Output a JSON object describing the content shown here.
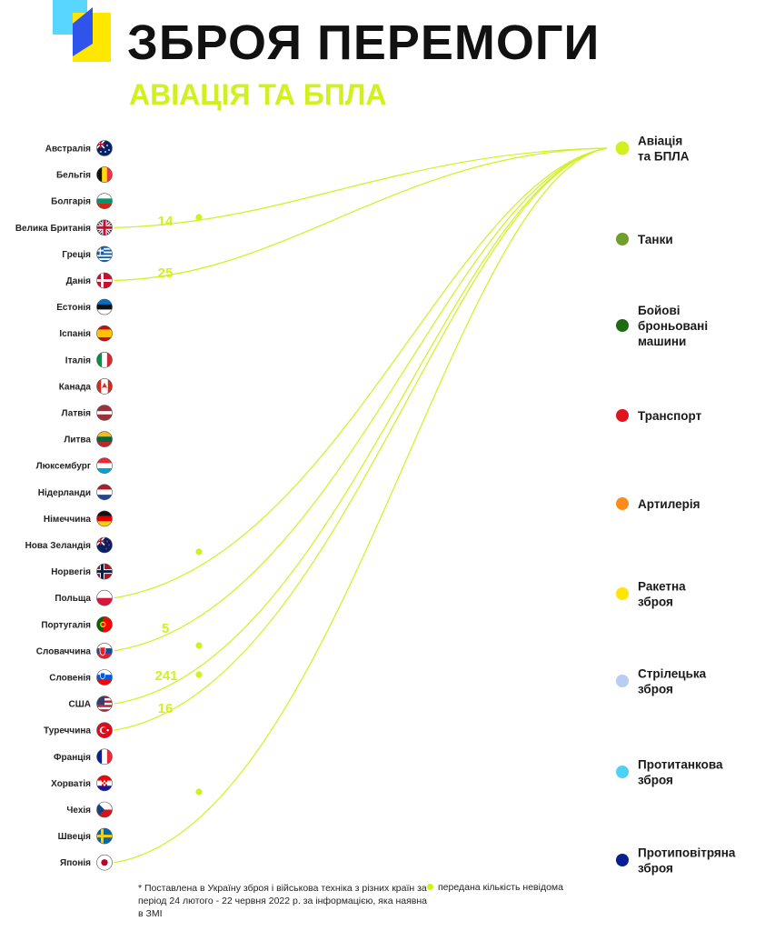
{
  "header": {
    "title": "ЗБРОЯ ПЕРЕМОГИ",
    "subtitle": "АВІАЦІЯ ТА БПЛА",
    "logo_icon": "ukraine-logo-icon",
    "colors": {
      "blue": "#2f54eb",
      "yellow": "#ffe700",
      "cyan": "#59d6ff",
      "accent": "#d2f020"
    }
  },
  "chart_data": {
    "type": "flow",
    "title": "ЗБРОЯ ПЕРЕМОГИ",
    "subtitle": "АВІАЦІЯ ТА БПЛА",
    "highlighted_category": "Авіація та БПЛА",
    "countries": [
      "Австралія",
      "Бельгія",
      "Болгарія",
      "Велика Британія",
      "Греція",
      "Данія",
      "Естонія",
      "Іспанія",
      "Італія",
      "Канада",
      "Латвія",
      "Литва",
      "Люксембург",
      "Нідерланди",
      "Німеччина",
      "Нова Зеландія",
      "Норвегія",
      "Польща",
      "Португалія",
      "Словаччина",
      "Словенія",
      "США",
      "Туреччина",
      "Франція",
      "Хорватія",
      "Чехія",
      "Швеція",
      "Японія"
    ],
    "categories": [
      {
        "name": "Авіація\nта БПЛА",
        "color": "#d2f020"
      },
      {
        "name": "Танки",
        "color": "#6f9f2a"
      },
      {
        "name": "Бойові\nброньовані\nмашини",
        "color": "#1e6b14"
      },
      {
        "name": "Транспорт",
        "color": "#e0141e"
      },
      {
        "name": "Артилерія",
        "color": "#ff8c1a"
      },
      {
        "name": "Ракетна\nзброя",
        "color": "#ffe600"
      },
      {
        "name": "Стрілецька\nзброя",
        "color": "#b8cdf4"
      },
      {
        "name": "Протитанкова\nзброя",
        "color": "#4fd1f5"
      },
      {
        "name": "Протиповітряна\nзброя",
        "color": "#0a1f8f"
      }
    ],
    "flows": [
      {
        "country": "Велика Британія",
        "category": "Авіація та БПЛА",
        "quantity": "14"
      },
      {
        "country": "Данія",
        "category": "Авіація та БПЛА",
        "quantity": "25"
      },
      {
        "country": "Польща",
        "category": "Авіація та БПЛА",
        "quantity": null
      },
      {
        "country": "Словаччина",
        "category": "Авіація та БПЛА",
        "quantity": "5"
      },
      {
        "country": "США",
        "category": "Авіація та БПЛА",
        "quantity": "241"
      },
      {
        "country": "Туреччина",
        "category": "Авіація та БПЛА",
        "quantity": "16"
      },
      {
        "country": "Японія",
        "category": "Авіація та БПЛА",
        "quantity": null
      }
    ],
    "unknown_markers_after": [
      "Нова Зеландія",
      "Словаччина",
      "Словенія",
      "Хорватія"
    ],
    "flags": {
      "Австралія": {
        "type": "au"
      },
      "Бельгія": {
        "type": "v3",
        "colors": [
          "#111111",
          "#ffd90c",
          "#ef3340"
        ]
      },
      "Болгарія": {
        "type": "h3",
        "colors": [
          "#ffffff",
          "#00966e",
          "#d62612"
        ]
      },
      "Велика Британія": {
        "type": "uk"
      },
      "Греція": {
        "type": "gr"
      },
      "Данія": {
        "type": "nordic",
        "colors": [
          "#c8102e",
          "#ffffff"
        ]
      },
      "Естонія": {
        "type": "h3",
        "colors": [
          "#0072ce",
          "#111111",
          "#ffffff"
        ]
      },
      "Іспанія": {
        "type": "es"
      },
      "Італія": {
        "type": "v3",
        "colors": [
          "#009246",
          "#ffffff",
          "#ce2b37"
        ]
      },
      "Канада": {
        "type": "ca"
      },
      "Латвія": {
        "type": "lv"
      },
      "Литва": {
        "type": "h3",
        "colors": [
          "#fdb913",
          "#006a44",
          "#c1272d"
        ]
      },
      "Люксембург": {
        "type": "h3",
        "colors": [
          "#ed2939",
          "#ffffff",
          "#00a1de"
        ]
      },
      "Нідерланди": {
        "type": "h3",
        "colors": [
          "#ae1c28",
          "#ffffff",
          "#21468b"
        ]
      },
      "Німеччина": {
        "type": "h3",
        "colors": [
          "#111111",
          "#dd0000",
          "#ffce00"
        ]
      },
      "Нова Зеландія": {
        "type": "nz"
      },
      "Норвегія": {
        "type": "nordic2",
        "colors": [
          "#ba0c2f",
          "#ffffff",
          "#00205b"
        ]
      },
      "Польща": {
        "type": "h2",
        "colors": [
          "#ffffff",
          "#dc143c"
        ]
      },
      "Португалія": {
        "type": "pt"
      },
      "Словаччина": {
        "type": "sk"
      },
      "Словенія": {
        "type": "si"
      },
      "США": {
        "type": "us"
      },
      "Туреччина": {
        "type": "tr"
      },
      "Франція": {
        "type": "v3",
        "colors": [
          "#002395",
          "#ffffff",
          "#ed2939"
        ]
      },
      "Хорватія": {
        "type": "hr"
      },
      "Чехія": {
        "type": "cz"
      },
      "Швеція": {
        "type": "nordic",
        "colors": [
          "#006aa7",
          "#fecc00"
        ]
      },
      "Японія": {
        "type": "jp"
      }
    }
  },
  "footnote": "* Поставлена в Україну зброя і військова техніка з різних країн за період 24 лютого - 22 червня 2022 р. за інформацією, яка наявна в ЗМІ",
  "legend": {
    "unknown_label": "передана кількість невідома"
  }
}
